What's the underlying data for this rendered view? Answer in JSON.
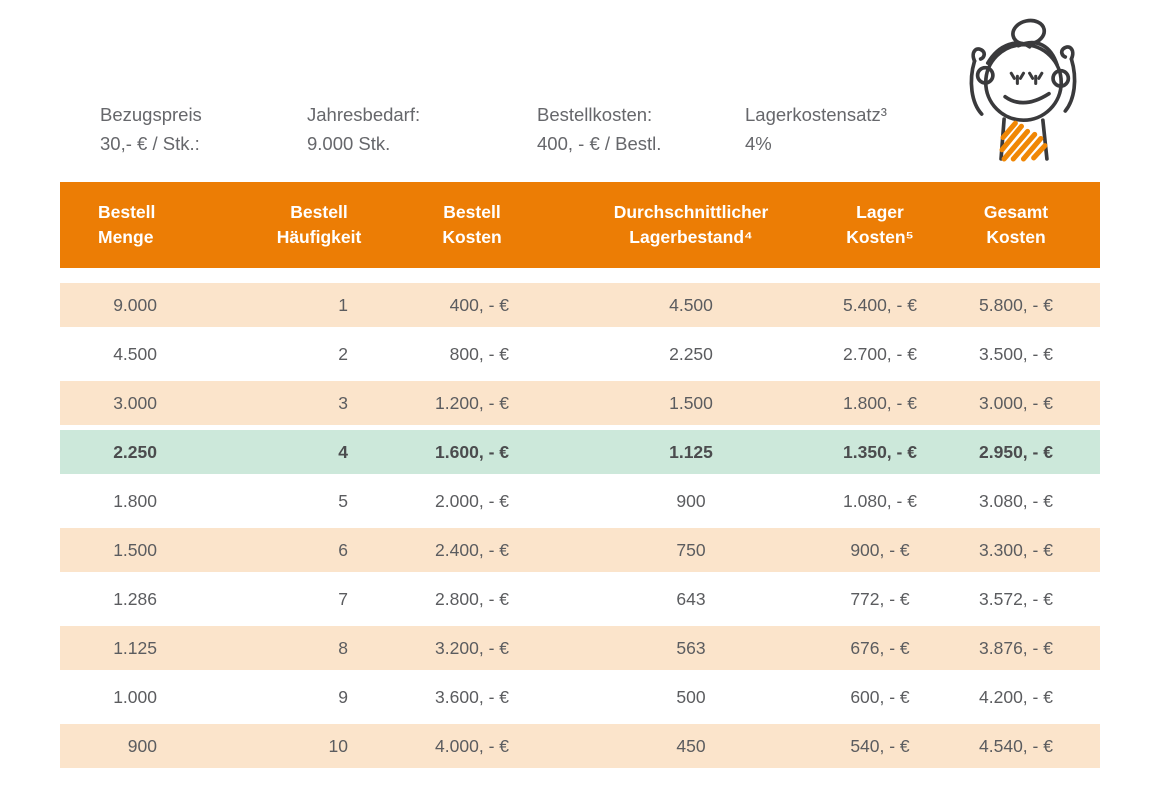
{
  "colors": {
    "accent": "#F08705",
    "header_bg": "#EC7D05",
    "header_text": "#FFFFFF",
    "row_peach": "#FBE4CB",
    "row_white": "#FFFFFF",
    "row_highlight": "#CCE8DA",
    "cell_text": "#5B5C5F",
    "highlight_text": "#4B4C4E",
    "info_text": "#66676B",
    "doodle_stroke": "#3A3A3C"
  },
  "info_bar": {
    "items": [
      {
        "label": "Bezugspreis",
        "value": "30,- € / Stk.:"
      },
      {
        "label": "Jahresbedarf:",
        "value": "9.000 Stk."
      },
      {
        "label": "Bestellkosten:",
        "value": "400, - € / Bestl."
      },
      {
        "label": "Lagerkostensatz³",
        "value": "4%"
      }
    ]
  },
  "illustration": {
    "name": "cheering-woman-doodle"
  },
  "table": {
    "columns": [
      {
        "line1": "Bestell",
        "line2": "Menge"
      },
      {
        "line1": "Bestell",
        "line2": "Häufigkeit"
      },
      {
        "line1": "Bestell",
        "line2": "Kosten"
      },
      {
        "line1": "Durchschnittlicher",
        "line2": "Lagerbestand⁴"
      },
      {
        "line1": "Lager",
        "line2": "Kosten⁵"
      },
      {
        "line1": "Gesamt",
        "line2": "Kosten"
      }
    ],
    "rows": [
      {
        "bg": "peach",
        "bold": false,
        "cells": [
          "9.000",
          "1",
          "400, - €",
          "4.500",
          "5.400, - €",
          "5.800, - €"
        ]
      },
      {
        "bg": "white",
        "bold": false,
        "cells": [
          "4.500",
          "2",
          "800, - €",
          "2.250",
          "2.700, - €",
          "3.500, - €"
        ]
      },
      {
        "bg": "peach",
        "bold": false,
        "cells": [
          "3.000",
          "3",
          "1.200, - €",
          "1.500",
          "1.800, - €",
          "3.000, - €"
        ]
      },
      {
        "bg": "highlight",
        "bold": true,
        "cells": [
          "2.250",
          "4",
          "1.600, - €",
          "1.125",
          "1.350, - €",
          "2.950, - €"
        ]
      },
      {
        "bg": "white",
        "bold": false,
        "cells": [
          "1.800",
          "5",
          "2.000, - €",
          "900",
          "1.080, - €",
          "3.080, - €"
        ]
      },
      {
        "bg": "peach",
        "bold": false,
        "cells": [
          "1.500",
          "6",
          "2.400, - €",
          "750",
          "900, - €",
          "3.300, - €"
        ]
      },
      {
        "bg": "white",
        "bold": false,
        "cells": [
          "1.286",
          "7",
          "2.800, - €",
          "643",
          "772, - €",
          "3.572, - €"
        ]
      },
      {
        "bg": "peach",
        "bold": false,
        "cells": [
          "1.125",
          "8",
          "3.200, - €",
          "563",
          "676, - €",
          "3.876, - €"
        ]
      },
      {
        "bg": "white",
        "bold": false,
        "cells": [
          "1.000",
          "9",
          "3.600, - €",
          "500",
          "600, - €",
          "4.200, - €"
        ]
      },
      {
        "bg": "peach",
        "bold": false,
        "cells": [
          "900",
          "10",
          "4.000, - €",
          "450",
          "540, - €",
          "4.540, - €"
        ]
      }
    ]
  }
}
